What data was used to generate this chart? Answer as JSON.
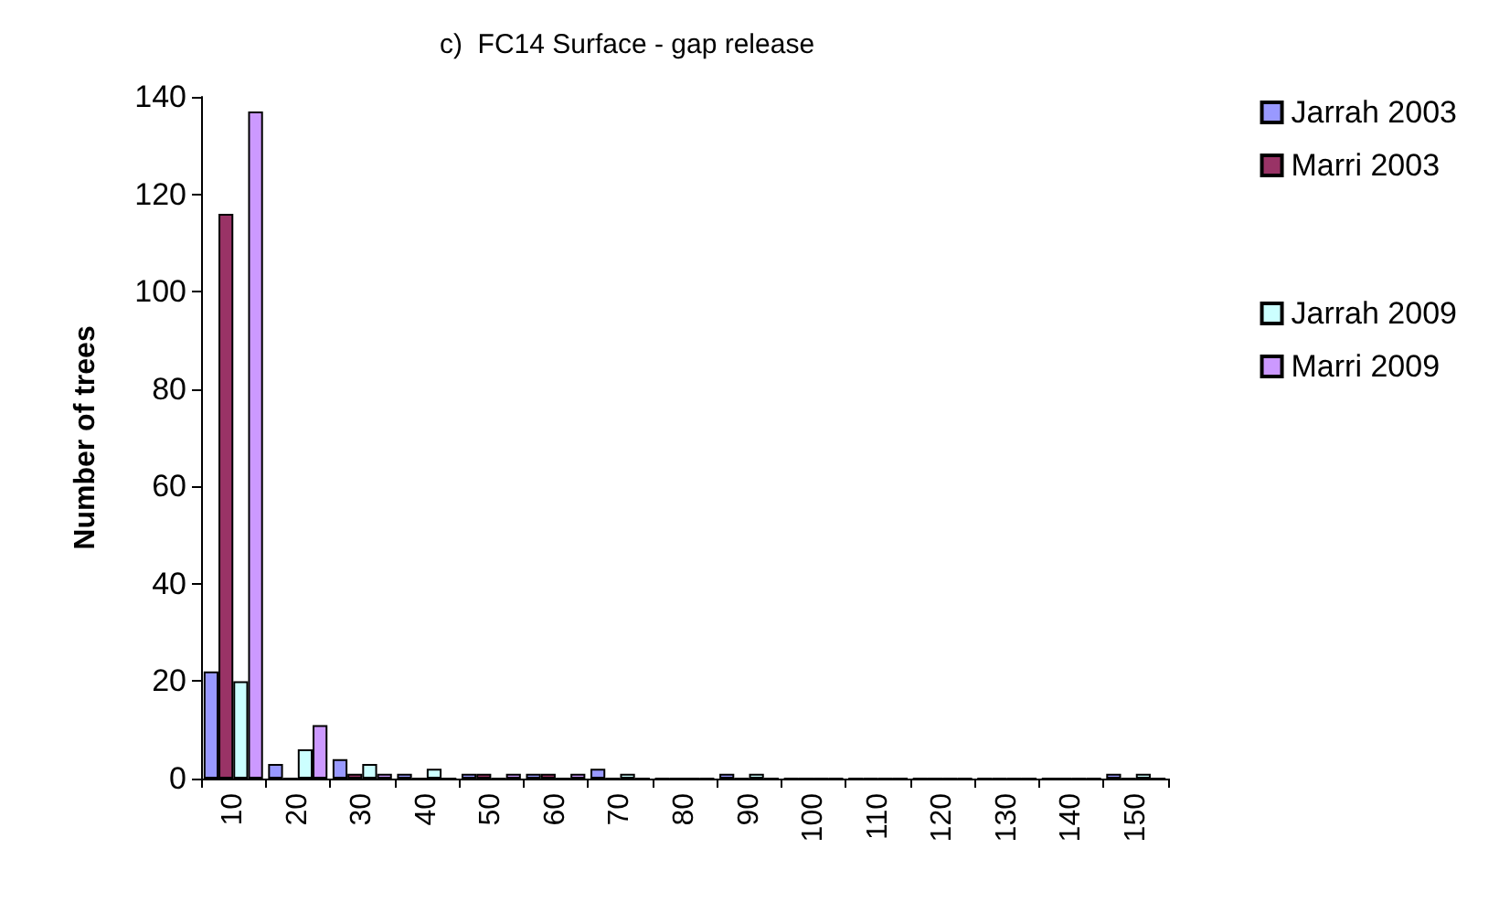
{
  "chart_data": {
    "type": "bar",
    "title": "c)  FC14 Surface - gap release",
    "ylabel": "Number of trees",
    "categories": [
      "10",
      "20",
      "30",
      "40",
      "50",
      "60",
      "70",
      "80",
      "90",
      "100",
      "110",
      "120",
      "130",
      "140",
      "150"
    ],
    "series": [
      {
        "name": "Jarrah 2003",
        "color": "#9999ff",
        "values": [
          22,
          3,
          4,
          1,
          1,
          1,
          2,
          0,
          1,
          0,
          0,
          0,
          0,
          0,
          1
        ]
      },
      {
        "name": "Marri 2003",
        "color": "#993366",
        "values": [
          116,
          0,
          1,
          0,
          1,
          1,
          0,
          0,
          0,
          0,
          0,
          0,
          0,
          0,
          0
        ]
      },
      {
        "name": "Jarrah 2009",
        "color": "#ccffff",
        "values": [
          20,
          6,
          3,
          2,
          0,
          0,
          1,
          0,
          1,
          0,
          0,
          0,
          0,
          0,
          1
        ]
      },
      {
        "name": "Marri 2009",
        "color": "#cc99ff",
        "values": [
          137,
          11,
          1,
          0,
          1,
          1,
          0,
          0,
          0,
          0,
          0,
          0,
          0,
          0,
          0
        ]
      }
    ],
    "ylim": [
      0,
      140
    ],
    "yticks": [
      0,
      20,
      40,
      60,
      80,
      100,
      120,
      140
    ],
    "grid": false,
    "legend": "top right"
  }
}
